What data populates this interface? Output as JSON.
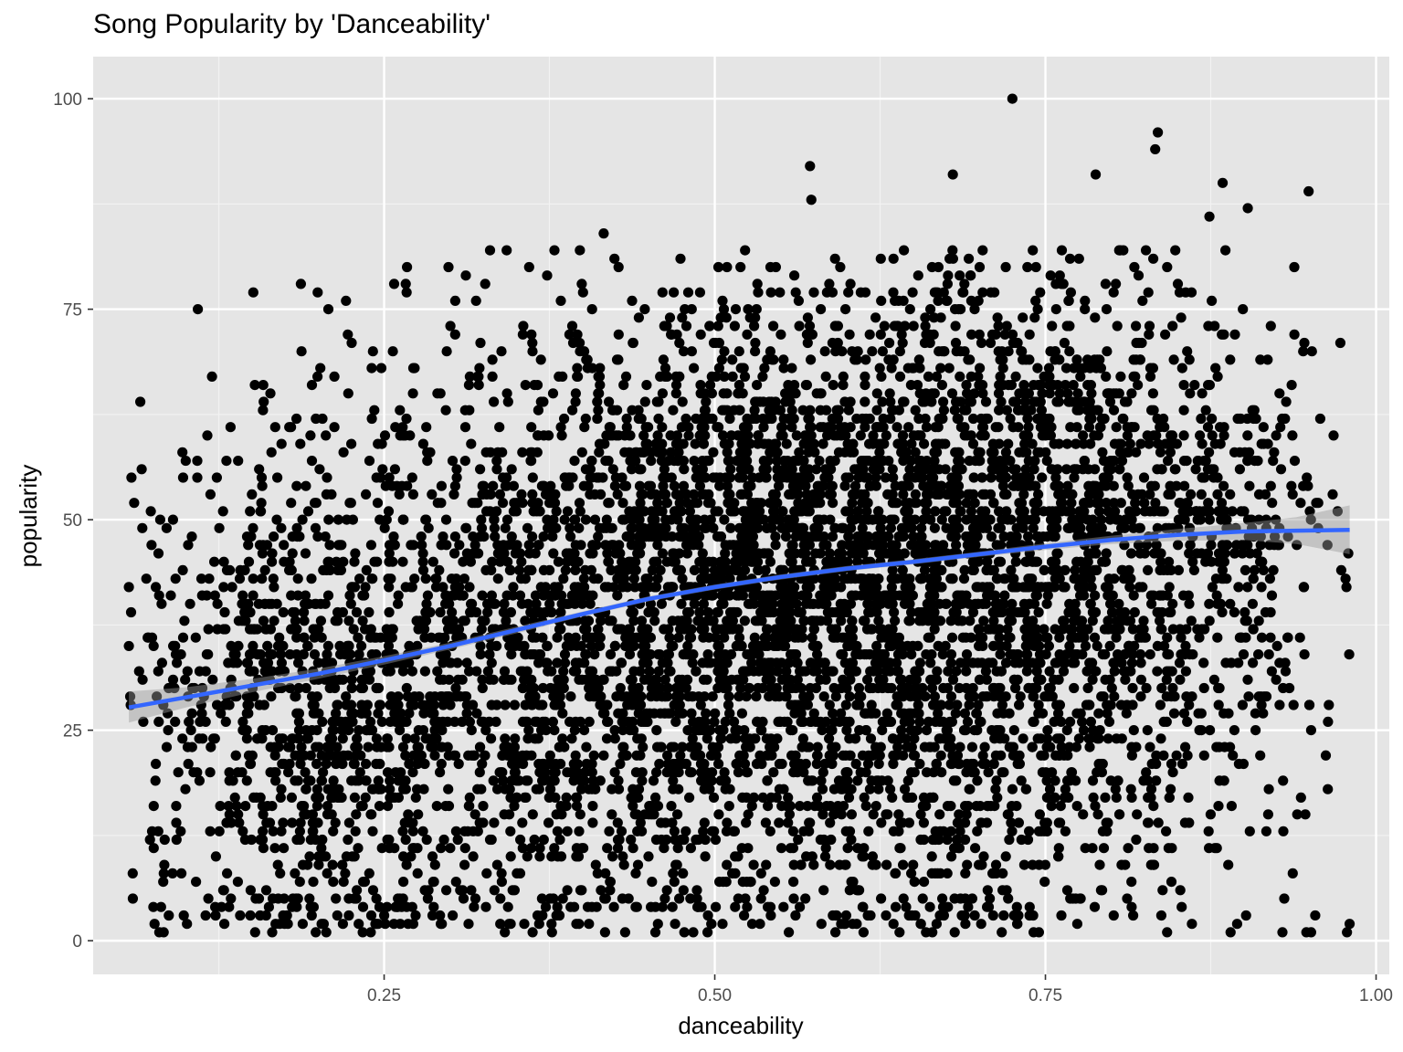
{
  "chart_data": {
    "type": "scatter",
    "title": "Song Popularity by 'Danceability'",
    "xlabel": "danceability",
    "ylabel": "popularity",
    "xlim": [
      0.03,
      1.01
    ],
    "ylim": [
      -4,
      105
    ],
    "x_ticks": [
      0.25,
      0.5,
      0.75,
      1.0
    ],
    "x_tick_labels": [
      "0.25",
      "0.50",
      "0.75",
      "1.00"
    ],
    "y_ticks": [
      0,
      25,
      50,
      75,
      100
    ],
    "y_tick_labels": [
      "0",
      "25",
      "50",
      "75",
      "100"
    ],
    "grid": true,
    "point_color": "#000000",
    "smooth_color": "#3366FF",
    "ribbon_color": "#999999",
    "panel_background": "#E5E5E5",
    "outliers": [
      {
        "x": 0.725,
        "y": 100
      },
      {
        "x": 0.835,
        "y": 96
      },
      {
        "x": 0.833,
        "y": 94
      },
      {
        "x": 0.572,
        "y": 92
      },
      {
        "x": 0.68,
        "y": 91
      },
      {
        "x": 0.788,
        "y": 91
      },
      {
        "x": 0.884,
        "y": 90
      },
      {
        "x": 0.949,
        "y": 89
      },
      {
        "x": 0.573,
        "y": 88
      },
      {
        "x": 0.903,
        "y": 87
      },
      {
        "x": 0.874,
        "y": 86
      },
      {
        "x": 0.416,
        "y": 84
      },
      {
        "x": 0.398,
        "y": 82
      },
      {
        "x": 0.826,
        "y": 82
      },
      {
        "x": 0.267,
        "y": 77
      },
      {
        "x": 0.973,
        "y": 71
      },
      {
        "x": 0.164,
        "y": 65
      },
      {
        "x": 0.962,
        "y": 22
      },
      {
        "x": 0.08,
        "y": 1
      },
      {
        "x": 0.978,
        "y": 1
      },
      {
        "x": 0.98,
        "y": 2
      },
      {
        "x": 0.06,
        "y": 5
      },
      {
        "x": 0.09,
        "y": 8
      },
      {
        "x": 0.937,
        "y": 8
      },
      {
        "x": 0.954,
        "y": 3
      },
      {
        "x": 0.89,
        "y": 1
      },
      {
        "x": 0.842,
        "y": 1
      },
      {
        "x": 0.057,
        "y": 42
      },
      {
        "x": 0.061,
        "y": 52
      },
      {
        "x": 0.1,
        "y": 57
      },
      {
        "x": 0.098,
        "y": 55
      },
      {
        "x": 0.057,
        "y": 35
      },
      {
        "x": 0.058,
        "y": 29
      }
    ],
    "density_regions": [
      {
        "cx": 0.55,
        "cy": 45,
        "sx": 0.09,
        "sy": 17,
        "n": 2200
      },
      {
        "cx": 0.75,
        "cy": 48,
        "sx": 0.07,
        "sy": 17,
        "n": 1400
      },
      {
        "cx": 0.35,
        "cy": 35,
        "sx": 0.11,
        "sy": 18,
        "n": 1500
      },
      {
        "cx": 0.18,
        "cy": 27,
        "sx": 0.07,
        "sy": 15,
        "n": 700
      },
      {
        "cx": 0.88,
        "cy": 45,
        "sx": 0.05,
        "sy": 14,
        "n": 350
      },
      {
        "cx": 0.65,
        "cy": 18,
        "sx": 0.13,
        "sy": 12,
        "n": 600
      }
    ],
    "smooth_line": [
      {
        "x": 0.057,
        "y": 27.7,
        "ymin": 25.9,
        "ymax": 29.6
      },
      {
        "x": 0.1,
        "y": 28.9,
        "ymin": 27.7,
        "ymax": 30.1
      },
      {
        "x": 0.15,
        "y": 30.3,
        "ymin": 29.5,
        "ymax": 31.1
      },
      {
        "x": 0.2,
        "y": 31.7,
        "ymin": 31.1,
        "ymax": 32.3
      },
      {
        "x": 0.25,
        "y": 33.3,
        "ymin": 32.8,
        "ymax": 33.8
      },
      {
        "x": 0.3,
        "y": 35.0,
        "ymin": 34.6,
        "ymax": 35.4
      },
      {
        "x": 0.35,
        "y": 36.9,
        "ymin": 36.5,
        "ymax": 37.3
      },
      {
        "x": 0.4,
        "y": 38.8,
        "ymin": 38.5,
        "ymax": 39.1
      },
      {
        "x": 0.45,
        "y": 40.6,
        "ymin": 40.3,
        "ymax": 40.9
      },
      {
        "x": 0.5,
        "y": 42.0,
        "ymin": 41.7,
        "ymax": 42.3
      },
      {
        "x": 0.55,
        "y": 43.2,
        "ymin": 42.9,
        "ymax": 43.5
      },
      {
        "x": 0.6,
        "y": 44.2,
        "ymin": 43.9,
        "ymax": 44.5
      },
      {
        "x": 0.65,
        "y": 45.0,
        "ymin": 44.7,
        "ymax": 45.3
      },
      {
        "x": 0.7,
        "y": 45.9,
        "ymin": 45.6,
        "ymax": 46.2
      },
      {
        "x": 0.75,
        "y": 46.8,
        "ymin": 46.4,
        "ymax": 47.2
      },
      {
        "x": 0.8,
        "y": 47.6,
        "ymin": 47.1,
        "ymax": 48.1
      },
      {
        "x": 0.85,
        "y": 48.2,
        "ymin": 47.5,
        "ymax": 48.9
      },
      {
        "x": 0.9,
        "y": 48.6,
        "ymin": 47.6,
        "ymax": 49.6
      },
      {
        "x": 0.94,
        "y": 48.7,
        "ymin": 47.1,
        "ymax": 50.3
      },
      {
        "x": 0.98,
        "y": 48.8,
        "ymin": 45.9,
        "ymax": 51.7
      }
    ]
  }
}
